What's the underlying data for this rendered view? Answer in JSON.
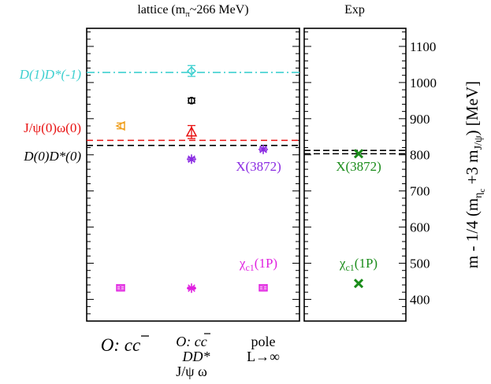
{
  "chart_data": {
    "type": "scatter",
    "panels": [
      {
        "title": "lattice (m",
        "title_sub": "π",
        "title_rest": "~266 MeV)"
      },
      {
        "title": "Exp"
      }
    ],
    "ylabel_parts": [
      "m - 1/4 (m",
      "η",
      "c",
      " +3 m",
      "J/ψ",
      ")  [MeV]"
    ],
    "ylim": [
      340,
      1150
    ],
    "yticks": [
      400,
      500,
      600,
      700,
      800,
      900,
      1000,
      1100
    ],
    "xcategories": [
      {
        "lines": [
          "O: cc"
        ],
        "style": "large"
      },
      {
        "lines": [
          "O: cc",
          "DD*",
          "J/ψ ω"
        ],
        "style": "small"
      },
      {
        "lines": [
          "pole",
          "L→∞"
        ],
        "style": "upright"
      }
    ],
    "thresholds": [
      {
        "label": "D(1)D*(-1)",
        "value": 1028,
        "color": "#3fd0d0",
        "dash": "dashdot",
        "label_italic": true
      },
      {
        "label": "J/ψ(0)ω(0)",
        "value": 840,
        "color": "#e81010",
        "dash": "dash",
        "label_italic": false
      },
      {
        "label": "D(0)D*(0)",
        "value": 826,
        "color": "#000000",
        "dash": "dash",
        "label_italic": true
      }
    ],
    "exp_thresholds": [
      {
        "value": 812,
        "color": "#000000"
      },
      {
        "value": 803,
        "color": "#000000"
      }
    ],
    "lattice_points": [
      {
        "x": 1,
        "y": 880,
        "err": 8,
        "marker": "triangle-left",
        "color": "#f0a020"
      },
      {
        "x": 1,
        "y": 432,
        "err": 5,
        "marker": "square-plus",
        "color": "#e020e0"
      },
      {
        "x": 2,
        "y": 1032,
        "err": 15,
        "marker": "diamond",
        "color": "#3fd0d0"
      },
      {
        "x": 2,
        "y": 950,
        "err": 7,
        "marker": "circle",
        "color": "#000000"
      },
      {
        "x": 2,
        "y": 863,
        "err": 18,
        "marker": "triangle-up",
        "color": "#e81010"
      },
      {
        "x": 2,
        "y": 788,
        "err": 4,
        "marker": "star",
        "color": "#8a2be2"
      },
      {
        "x": 2,
        "y": 431,
        "err": 3,
        "marker": "star",
        "color": "#e020e0"
      },
      {
        "x": 3,
        "y": 815,
        "err": 4,
        "marker": "star",
        "color": "#8a2be2"
      },
      {
        "x": 3,
        "y": 432,
        "err": 5,
        "marker": "square-plus",
        "color": "#e020e0"
      }
    ],
    "exp_points": [
      {
        "y": 803,
        "marker": "x",
        "color": "#1a8c1a"
      },
      {
        "y": 444,
        "marker": "x",
        "color": "#1a8c1a"
      }
    ],
    "annotations": [
      {
        "panel": "lattice",
        "text": "X(3872)",
        "sub": "",
        "x": 3,
        "y": 760,
        "color": "#8a2be2"
      },
      {
        "panel": "lattice",
        "text": "χ",
        "sub": "c1",
        "rest": "(1P)",
        "x": 3,
        "y": 492,
        "color": "#e020e0"
      },
      {
        "panel": "exp",
        "text": "X(3872)",
        "sub": "",
        "y": 760,
        "color": "#1a8c1a"
      },
      {
        "panel": "exp",
        "text": "χ",
        "sub": "c1",
        "rest": "(1P)",
        "y": 492,
        "color": "#1a8c1a"
      }
    ]
  }
}
